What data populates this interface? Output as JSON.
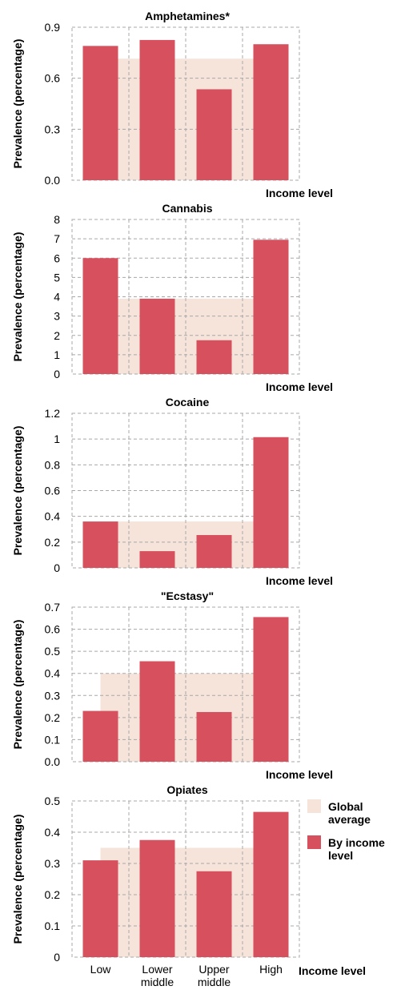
{
  "chart_data": [
    {
      "type": "bar",
      "title": "Amphetamines*",
      "ylabel": "Prevalence (percentage)",
      "xlabel": "Income level",
      "categories": [
        "Low",
        "Lower middle",
        "Upper middle",
        "High"
      ],
      "ylim": [
        0,
        0.9
      ],
      "yticks": [
        "0.0",
        "0.3",
        "0.6",
        "0.9"
      ],
      "series": [
        {
          "name": "By income level",
          "values": [
            0.79,
            0.825,
            0.535,
            0.8
          ]
        },
        {
          "name": "Global average",
          "value": 0.715
        }
      ]
    },
    {
      "type": "bar",
      "title": "Cannabis",
      "ylabel": "Prevalence (percentage)",
      "xlabel": "Income level",
      "categories": [
        "Low",
        "Lower middle",
        "Upper middle",
        "High"
      ],
      "ylim": [
        0,
        8
      ],
      "yticks": [
        "0",
        "1",
        "2",
        "3",
        "4",
        "5",
        "6",
        "7",
        "8"
      ],
      "series": [
        {
          "name": "By income level",
          "values": [
            6.0,
            3.9,
            1.75,
            6.95
          ]
        },
        {
          "name": "Global average",
          "value": 3.9
        }
      ]
    },
    {
      "type": "bar",
      "title": "Cocaine",
      "ylabel": "Prevalence (percentage)",
      "xlabel": "Income level",
      "categories": [
        "Low",
        "Lower middle",
        "Upper middle",
        "High"
      ],
      "ylim": [
        0,
        1.2
      ],
      "yticks": [
        "0",
        "0.2",
        "0.4",
        "0.6",
        "0.8",
        "1",
        "1.2"
      ],
      "series": [
        {
          "name": "By income level",
          "values": [
            0.36,
            0.13,
            0.255,
            1.015
          ]
        },
        {
          "name": "Global average",
          "value": 0.36
        }
      ]
    },
    {
      "type": "bar",
      "title": "\"Ecstasy\"",
      "ylabel": "Prevalence (percentage)",
      "xlabel": "Income level",
      "categories": [
        "Low",
        "Lower middle",
        "Upper middle",
        "High"
      ],
      "ylim": [
        0,
        0.7
      ],
      "yticks": [
        "0.0",
        "0.1",
        "0.2",
        "0.3",
        "0.4",
        "0.5",
        "0.6",
        "0.7"
      ],
      "series": [
        {
          "name": "By income level",
          "values": [
            0.23,
            0.455,
            0.225,
            0.655
          ]
        },
        {
          "name": "Global average",
          "value": 0.4
        }
      ]
    },
    {
      "type": "bar",
      "title": "Opiates",
      "ylabel": "Prevalence (percentage)",
      "xlabel": "Income level",
      "categories": [
        "Low",
        "Lower middle",
        "Upper middle",
        "High"
      ],
      "ylim": [
        0,
        0.5
      ],
      "yticks": [
        "0",
        "0.1",
        "0.2",
        "0.3",
        "0.4",
        "0.5"
      ],
      "series": [
        {
          "name": "By income level",
          "values": [
            0.31,
            0.375,
            0.275,
            0.465
          ]
        },
        {
          "name": "Global average",
          "value": 0.35
        }
      ]
    }
  ],
  "x_tick_labels": [
    [
      "Low"
    ],
    [
      "Lower",
      "middle"
    ],
    [
      "Upper",
      "middle"
    ],
    [
      "High"
    ]
  ],
  "legend": {
    "placement": "right of bottom panel",
    "items": [
      {
        "label_lines": [
          "Global",
          "average"
        ],
        "color": "#f6e4da"
      },
      {
        "label_lines": [
          "By income",
          "level"
        ],
        "color": "#d6505e"
      }
    ]
  },
  "colors": {
    "bar": "#d6505e",
    "average": "#f6e4da",
    "grid": "#a8a8a8",
    "text": "#000000"
  }
}
